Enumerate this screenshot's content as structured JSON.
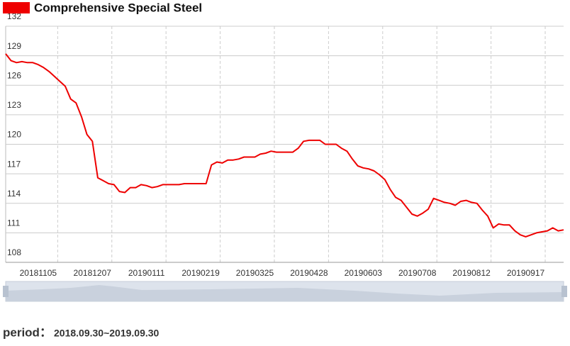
{
  "chart_data": {
    "type": "line",
    "categories": [
      null,
      null,
      null,
      null,
      null,
      null,
      "20181105",
      null,
      null,
      null,
      null,
      null,
      null,
      null,
      null,
      null,
      "20181207",
      null,
      null,
      null,
      null,
      null,
      null,
      null,
      null,
      null,
      "20190111",
      null,
      null,
      null,
      null,
      null,
      null,
      null,
      null,
      null,
      "20190219",
      null,
      null,
      null,
      null,
      null,
      null,
      null,
      null,
      null,
      "20190325",
      null,
      null,
      null,
      null,
      null,
      null,
      null,
      null,
      null,
      "20190428",
      null,
      null,
      null,
      null,
      null,
      null,
      null,
      null,
      null,
      "20190603",
      null,
      null,
      null,
      null,
      null,
      null,
      null,
      null,
      null,
      "20190708",
      null,
      null,
      null,
      null,
      null,
      null,
      null,
      null,
      null,
      "20190812",
      null,
      null,
      null,
      null,
      null,
      null,
      null,
      null,
      null,
      "20190917",
      null,
      null,
      null,
      null,
      null,
      null,
      null
    ],
    "series": [
      {
        "name": "Comprehensive Special Steel",
        "color": "#ee0000",
        "values": [
          129.2,
          128.5,
          128.3,
          128.4,
          128.3,
          128.3,
          128.1,
          127.8,
          127.4,
          126.9,
          126.4,
          125.9,
          124.6,
          124.2,
          122.8,
          121.0,
          120.3,
          116.6,
          116.3,
          116.0,
          115.9,
          115.2,
          115.1,
          115.6,
          115.6,
          115.9,
          115.8,
          115.6,
          115.7,
          115.9,
          115.9,
          115.9,
          115.9,
          116.0,
          116.0,
          116.0,
          116.0,
          116.0,
          117.9,
          118.2,
          118.1,
          118.4,
          118.4,
          118.5,
          118.7,
          118.7,
          118.7,
          119.0,
          119.1,
          119.3,
          119.2,
          119.2,
          119.2,
          119.2,
          119.6,
          120.3,
          120.4,
          120.4,
          120.4,
          120.0,
          120.0,
          120.0,
          119.6,
          119.3,
          118.5,
          117.8,
          117.6,
          117.5,
          117.3,
          116.9,
          116.4,
          115.4,
          114.6,
          114.3,
          113.6,
          112.9,
          112.7,
          113.0,
          113.4,
          114.5,
          114.3,
          114.1,
          114.0,
          113.8,
          114.2,
          114.3,
          114.1,
          114.0,
          113.3,
          112.7,
          111.5,
          111.9,
          111.8,
          111.8,
          111.2,
          110.8,
          110.6,
          110.8,
          111.0,
          111.1,
          111.2,
          111.5,
          111.2,
          111.3
        ]
      }
    ],
    "ylim": [
      108,
      132
    ],
    "yticks": [
      108,
      111,
      114,
      117,
      120,
      123,
      126,
      129,
      132
    ],
    "grid": true
  },
  "period_label": "period：",
  "period": "2018.09.30~2019.09.30"
}
